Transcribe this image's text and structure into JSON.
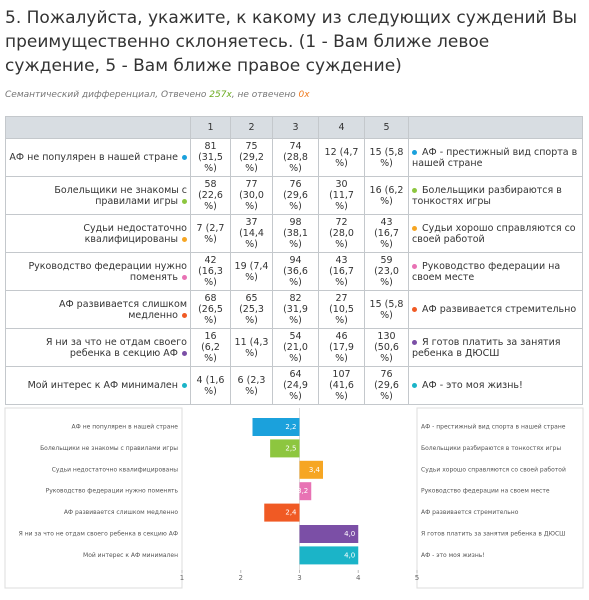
{
  "header": {
    "title": "5. Пожалуйста, укажите, к какому из следующих суждений Вы преимущественно склоняетесь. (1 - Вам ближе левое суждение, 5 - Вам ближе правое суждение)",
    "subtitle": {
      "kind": "Семантический дифференциал, Отвечено ",
      "answered": "257x",
      "sep": ", не отвечено ",
      "unanswered": "0x"
    }
  },
  "table": {
    "columns": [
      "1",
      "2",
      "3",
      "4",
      "5"
    ],
    "rows": [
      {
        "left": "АФ не популярен в нашей стране",
        "color": "#1ba1dc",
        "cells": [
          "81 (31,5 %)",
          "75 (29,2 %)",
          "74 (28,8 %)",
          "12 (4,7 %)",
          "15 (5,8 %)"
        ],
        "right": "АФ - престижный вид спорта в нашей стране"
      },
      {
        "left": "Болельщики не знакомы с правилами игры",
        "color": "#8dc63f",
        "cells": [
          "58 (22,6 %)",
          "77 (30,0 %)",
          "76 (29,6 %)",
          "30 (11,7 %)",
          "16 (6,2 %)"
        ],
        "right": "Болельщики разбираются в тонкостях игры"
      },
      {
        "left": "Судьи недостаточно квалифицированы",
        "color": "#f6a623",
        "cells": [
          "7 (2,7 %)",
          "37 (14,4 %)",
          "98 (38,1 %)",
          "72 (28,0 %)",
          "43 (16,7 %)"
        ],
        "right": "Судьи хорошо справляются со своей работой"
      },
      {
        "left": "Руководство федерации нужно поменять",
        "color": "#e872b4",
        "cells": [
          "42 (16,3 %)",
          "19 (7,4 %)",
          "94 (36,6 %)",
          "43 (16,7 %)",
          "59 (23,0 %)"
        ],
        "right": "Руководство федерации на своем месте"
      },
      {
        "left": "АФ развивается слишком медленно",
        "color": "#f05a24",
        "cells": [
          "68 (26,5 %)",
          "65 (25,3 %)",
          "82 (31,9 %)",
          "27 (10,5 %)",
          "15 (5,8 %)"
        ],
        "right": "АФ развивается стремительно"
      },
      {
        "left": "Я ни за что не отдам своего ребенка в секцию АФ",
        "color": "#7b4fa6",
        "cells": [
          "16 (6,2 %)",
          "11 (4,3 %)",
          "54 (21,0 %)",
          "46 (17,9 %)",
          "130 (50,6 %)"
        ],
        "right": "Я готов платить за занятия ребенка в ДЮСШ"
      },
      {
        "left": "Мой интерес к АФ минимален",
        "color": "#1bb4c8",
        "cells": [
          "4 (1,6 %)",
          "6 (2,3 %)",
          "64 (24,9 %)",
          "107 (41,6 %)",
          "76 (29,6 %)"
        ],
        "right": "АФ - это моя жизнь!"
      }
    ]
  },
  "chart_data": {
    "type": "bar",
    "orientation": "horizontal",
    "categories": [
      "АФ не популярен в нашей стране",
      "Болельщики не знакомы с правилами игры",
      "Судьи недостаточно квалифицированы",
      "Руководство федерации нужно поменять",
      "АФ развивается слишком медленно",
      "Я ни за что не отдам своего ребенка в секцию АФ",
      "Мой интерес к АФ минимален"
    ],
    "right_labels": [
      "АФ - престижный вид спорта в нашей стране",
      "Болельщики разбираются в тонкостях игры",
      "Судьи хорошо справляются со своей работой",
      "Руководство федерации на своем месте",
      "АФ развивается стремительно",
      "Я готов платить за занятия ребенка в ДЮСШ",
      "АФ - это моя жизнь!"
    ],
    "values": [
      2.2,
      2.5,
      3.4,
      3.2,
      2.4,
      4.0,
      4.0
    ],
    "value_labels": [
      "2,2",
      "2,5",
      "3,4",
      "3,2",
      "2,4",
      "4,0",
      "4,0"
    ],
    "colors": [
      "#1ba1dc",
      "#8dc63f",
      "#f6a623",
      "#e872b4",
      "#f05a24",
      "#7b4fa6",
      "#1bb4c8"
    ],
    "xlim": [
      1,
      5
    ],
    "xticks": [
      1,
      2,
      3,
      4,
      5
    ]
  }
}
